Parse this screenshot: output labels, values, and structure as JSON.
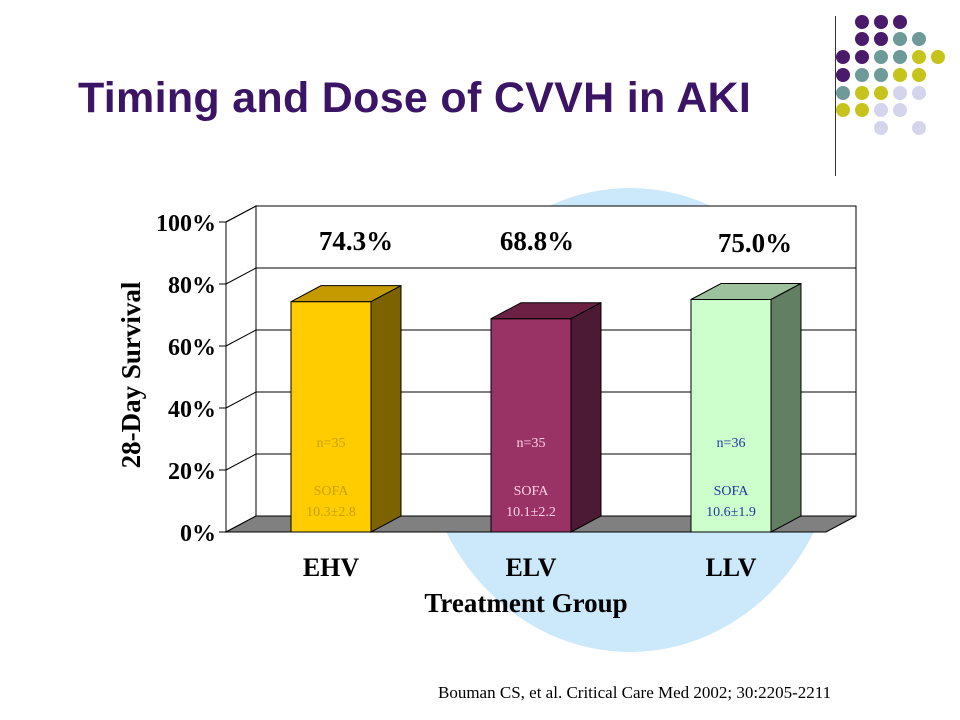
{
  "title": "Timing and Dose of CVVH in AKI",
  "citation": "Bouman CS, et al.  Critical Care Med 2002; 30:2205-2211",
  "decoration": {
    "dot_colors": {
      "purple": "#4a1a6b",
      "teal": "#6e9a9a",
      "yellow": "#c6c41c",
      "lavender": "#d4d4ec"
    },
    "highlight_circle_color": "#cce8fb"
  },
  "chart_data": {
    "type": "bar",
    "title": "",
    "xlabel": "Treatment Group",
    "ylabel": "28-Day Survival",
    "ylim": [
      0,
      100
    ],
    "yticks": [
      "0%",
      "20%",
      "40%",
      "60%",
      "80%",
      "100%"
    ],
    "categories": [
      "EHV",
      "ELV",
      "LLV"
    ],
    "values": [
      74.3,
      68.8,
      75.0
    ],
    "value_labels": [
      "74.3%",
      "68.8%",
      "75.0%"
    ],
    "bar_annotations": [
      {
        "n": "n=35",
        "sofa_label": "SOFA",
        "sofa_value": "10.3±2.8"
      },
      {
        "n": "n=35",
        "sofa_label": "SOFA",
        "sofa_value": "10.1±2.2"
      },
      {
        "n": "n=36",
        "sofa_label": "SOFA",
        "sofa_value": "10.6±1.9"
      }
    ],
    "bar_colors": [
      {
        "front": "#ffcc00",
        "top": "#c49a00",
        "side": "#7d6200",
        "text": "#c8a000"
      },
      {
        "front": "#993366",
        "top": "#6b2044",
        "side": "#4d1a36",
        "text": "#ffd2e6"
      },
      {
        "front": "#ccffcc",
        "top": "#9dc09d",
        "side": "#637f63",
        "text": "#1f3aa0"
      }
    ],
    "grid": true,
    "style": "3d-bar"
  }
}
